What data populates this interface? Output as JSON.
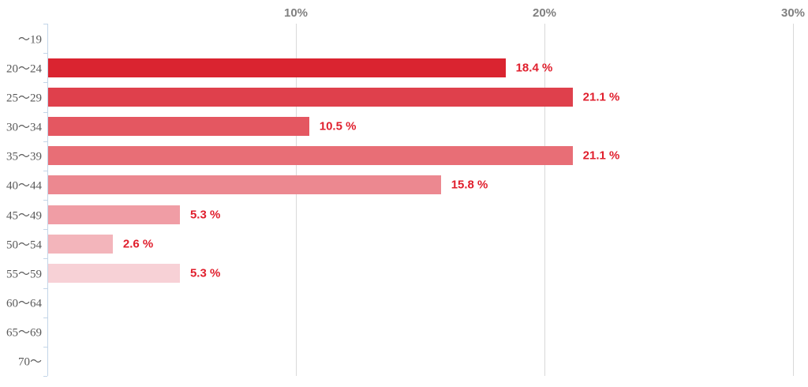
{
  "chart_data": {
    "type": "bar",
    "orientation": "horizontal",
    "title": "",
    "xlabel": "",
    "ylabel": "",
    "categories": [
      "〜19",
      "20〜24",
      "25〜29",
      "30〜34",
      "35〜39",
      "40〜44",
      "45〜49",
      "50〜54",
      "55〜59",
      "60〜64",
      "65〜69",
      "70〜"
    ],
    "values": [
      null,
      18.4,
      21.1,
      10.5,
      21.1,
      15.8,
      5.3,
      2.6,
      5.3,
      null,
      null,
      null
    ],
    "value_labels": [
      "",
      "18.4 %",
      "21.1 %",
      "10.5 %",
      "21.1 %",
      "15.8 %",
      "5.3 %",
      "2.6 %",
      "5.3 %",
      "",
      "",
      ""
    ],
    "bar_colors": [
      null,
      "#da2430",
      "#df404c",
      "#e45761",
      "#e86e76",
      "#ec8890",
      "#f09da5",
      "#f3b5bb",
      "#f7d1d6",
      null,
      null,
      null
    ],
    "x_axis": {
      "tick_labels": [
        "10%",
        "20%",
        "30%"
      ],
      "tick_values": [
        10,
        20,
        30
      ],
      "min": 0,
      "max": 30
    },
    "grid": true,
    "legend": "none",
    "colors": {
      "background": "#ffffff",
      "gridline": "#d9d9d9",
      "axis_line": "#c3d5e8",
      "x_tick_label": "#808080",
      "category_label": "#595959",
      "value_label": "#e01f2d"
    }
  }
}
